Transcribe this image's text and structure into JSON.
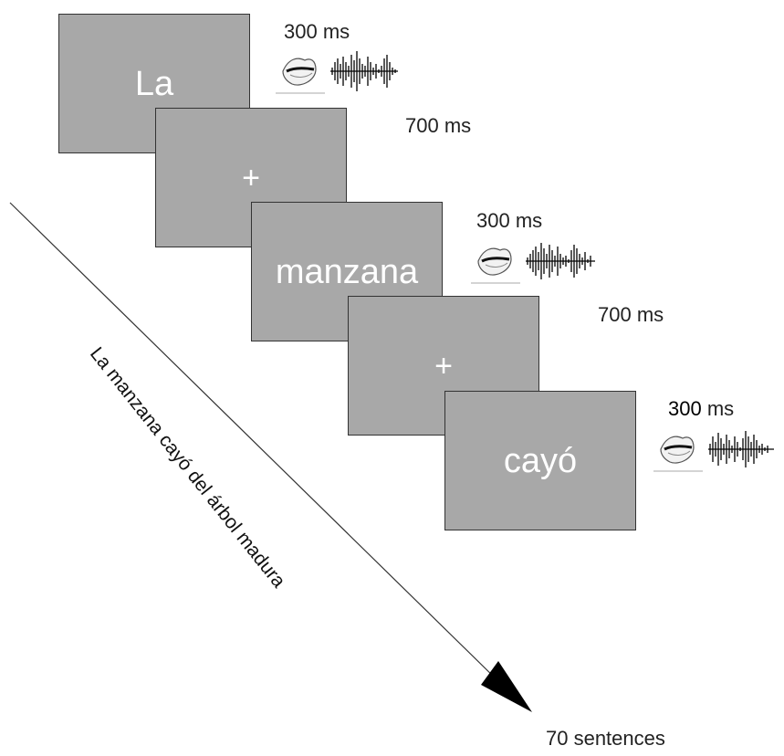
{
  "frames": [
    {
      "text": "La"
    },
    {
      "text": "+"
    },
    {
      "text": "manzana"
    },
    {
      "text": "+"
    },
    {
      "text": "cayó"
    }
  ],
  "durations": {
    "audio_1": "300 ms",
    "gap_1": "700 ms",
    "audio_2": "300 ms",
    "gap_2": "700 ms",
    "audio_3_num": "300",
    "audio_3_unit": " ms"
  },
  "sentence": "La manzana cayó del árbol madura",
  "footer": "70 sentences",
  "icons": [
    "lips-icon",
    "waveform-icon"
  ],
  "colors": {
    "frame_fill": "#a8a8a8",
    "frame_text": "#ffffff"
  }
}
